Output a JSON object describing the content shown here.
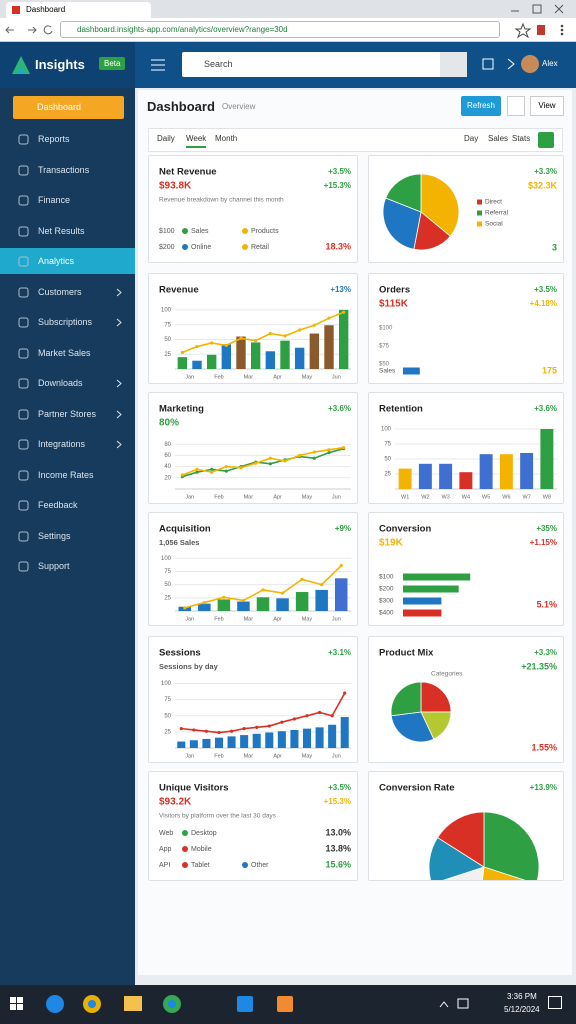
{
  "browser": {
    "tab": "Dashboard",
    "url": "dashboard.insights-app.com/analytics/overview?range=30d"
  },
  "header": {
    "logo": "Insights",
    "badge": "Beta",
    "search": "Search",
    "user": "Alex"
  },
  "sidebar": {
    "primary": "Dashboard",
    "items": [
      {
        "label": "Reports"
      },
      {
        "label": "Transactions"
      },
      {
        "label": "Finance"
      },
      {
        "label": "Net Results"
      },
      {
        "label": "Analytics",
        "active": true
      },
      {
        "label": "Customers",
        "submenu": true
      },
      {
        "label": "Subscriptions",
        "submenu": true
      },
      {
        "label": "Market Sales"
      },
      {
        "label": "Downloads",
        "submenu": true
      },
      {
        "label": "Partner Stores",
        "submenu": true
      },
      {
        "label": "Integrations",
        "submenu": true
      },
      {
        "label": "Income Rates"
      },
      {
        "label": "Feedback"
      },
      {
        "label": "Settings"
      },
      {
        "label": "Support"
      }
    ]
  },
  "page": {
    "title": "Dashboard",
    "subtitle": "Overview",
    "buttons": [
      "Refresh",
      "View"
    ],
    "tabs": [
      "Daily",
      "Week",
      "Month"
    ],
    "active_tab": 1,
    "filters": [
      "Day",
      "Sales",
      "Stats"
    ]
  },
  "cards": [
    {
      "type": "summary",
      "title": "Net Revenue",
      "change": "+3.5%",
      "value": "$93.8K",
      "value_color": "#d93025",
      "change2": "+15.3%",
      "note": "Revenue breakdown by channel this month",
      "rows": [
        {
          "lead": "$100",
          "items": [
            {
              "label": "Sales",
              "color": "#2ea043"
            },
            {
              "label": "Products",
              "color": "#f5b301"
            }
          ]
        },
        {
          "lead": "$200",
          "items": [
            {
              "label": "Online",
              "color": "#1f77c4"
            },
            {
              "label": "Retail",
              "color": "#f5b301"
            }
          ],
          "value": "18.3%",
          "value_color": "#d93025"
        }
      ]
    },
    {
      "type": "pie",
      "change": "+3.3%",
      "value": "$32.3K",
      "value_color": "#f5b301",
      "values": [
        36,
        17,
        28,
        19
      ],
      "colors": [
        "#f5b301",
        "#d93025",
        "#1f77c4",
        "#2ea043"
      ],
      "legend": [
        {
          "label": "Direct",
          "color": "#d93025"
        },
        {
          "label": "Referral",
          "color": "#2ea043"
        },
        {
          "label": "Social",
          "color": "#f5b301"
        }
      ],
      "footer": "3",
      "footer_color": "#2ea043"
    },
    {
      "type": "chart",
      "title": "Revenue",
      "change": "+13%",
      "change_color": "#1f77c4",
      "ylim": [
        0,
        110
      ],
      "yticks": [
        25,
        50,
        75,
        100
      ],
      "xlabels": [
        "Jan",
        "Feb",
        "Mar",
        "Apr",
        "May",
        "Jun"
      ],
      "series": [
        {
          "kind": "bar",
          "colors": [
            "#2ea043",
            "#1f77c4",
            "#2ea043",
            "#1f77c4",
            "#8b5a2b",
            "#2ea043",
            "#1f77c4",
            "#2ea043",
            "#1f77c4",
            "#8b5a2b",
            "#8b5a2b",
            "#2ea043"
          ],
          "values": [
            20,
            14,
            24,
            42,
            55,
            45,
            30,
            48,
            36,
            60,
            74,
            100
          ]
        },
        {
          "kind": "line",
          "color": "#f5b301",
          "values": [
            28,
            38,
            44,
            40,
            52,
            48,
            60,
            56,
            66,
            74,
            86,
            96
          ]
        }
      ]
    },
    {
      "type": "hbar",
      "title": "Orders",
      "change": "+3.5%",
      "value": "$115K",
      "value_color": "#d93025",
      "change2": "+4.18%",
      "change2_color": "#f5b301",
      "scale": [
        "$100",
        "$75",
        "$50"
      ],
      "xlim": [
        0,
        1000
      ],
      "print_values": true,
      "values_color": "#f5b301",
      "bars": [
        {
          "label": "Sales",
          "value": 175,
          "color": "#1f77c4"
        }
      ]
    },
    {
      "type": "chart",
      "title": "Marketing",
      "change": "+3.6%",
      "value": "80%",
      "value_color": "#2ea043",
      "ylim": [
        0,
        100
      ],
      "yticks": [
        20,
        40,
        60,
        80
      ],
      "xlabels": [
        "Jan",
        "Feb",
        "Mar",
        "Apr",
        "May",
        "Jun"
      ],
      "series": [
        {
          "kind": "line",
          "color": "#2ea043",
          "values": [
            22,
            30,
            35,
            32,
            40,
            48,
            45,
            52,
            58,
            55,
            65,
            72
          ]
        },
        {
          "kind": "line",
          "color": "#f5b301",
          "values": [
            25,
            35,
            30,
            40,
            38,
            46,
            55,
            50,
            60,
            66,
            70,
            74
          ]
        }
      ]
    },
    {
      "type": "chart",
      "title": "Retention",
      "change": "+3.6%",
      "ylim": [
        0,
        110
      ],
      "yticks": [
        25,
        50,
        75,
        100
      ],
      "xlabels": [
        "W1",
        "W2",
        "W3",
        "W4",
        "W5",
        "W6",
        "W7",
        "W8"
      ],
      "series": [
        {
          "kind": "bar",
          "colors": [
            "#f5b301",
            "#3f6fd1",
            "#3f6fd1",
            "#d93025",
            "#3f6fd1",
            "#f5b301",
            "#3f6fd1",
            "#2ea043"
          ],
          "values": [
            34,
            42,
            42,
            28,
            58,
            58,
            60,
            100
          ]
        }
      ]
    },
    {
      "type": "chart",
      "title": "Acquisition",
      "change": "+9%",
      "value": "1,056 Sales",
      "value_color": "#555555",
      "ylim": [
        0,
        110
      ],
      "yticks": [
        25,
        50,
        75,
        100
      ],
      "xlabels": [
        "Jan",
        "Feb",
        "Mar",
        "Apr",
        "May",
        "Jun"
      ],
      "series": [
        {
          "kind": "bar",
          "colors": [
            "#1f77c4",
            "#1f77c4",
            "#2ea043",
            "#1f77c4",
            "#2ea043",
            "#1f77c4",
            "#2ea043",
            "#1f77c4",
            "#3f6fd1"
          ],
          "values": [
            8,
            14,
            22,
            18,
            26,
            24,
            36,
            40,
            62
          ]
        },
        {
          "kind": "line",
          "color": "#f5b301",
          "values": [
            6,
            16,
            26,
            20,
            40,
            34,
            60,
            50,
            86
          ]
        }
      ]
    },
    {
      "type": "hbar",
      "title": "Conversion",
      "change": "+35%",
      "value": "$19K",
      "value_color": "#f5b301",
      "change2": "+1.15%",
      "change2_color": "#d93025",
      "xlim": [
        0,
        100
      ],
      "bars": [
        {
          "label": "$100",
          "value": 70,
          "color": "#2ea043"
        },
        {
          "label": "$200",
          "value": 58,
          "color": "#2ea043"
        },
        {
          "label": "$300",
          "value": 40,
          "color": "#1f77c4"
        },
        {
          "label": "$400",
          "value": 40,
          "color": "#d93025"
        }
      ],
      "footer": "5.1%",
      "footer_color": "#d93025"
    },
    {
      "type": "chart",
      "title": "Sessions",
      "change": "+3.1%",
      "value": "Sessions by day",
      "value_color": "#555555",
      "ylim": [
        0,
        110
      ],
      "yticks": [
        25,
        50,
        75,
        100
      ],
      "xlabels": [
        "Jan",
        "Feb",
        "Mar",
        "Apr",
        "May",
        "Jun"
      ],
      "series": [
        {
          "kind": "bar",
          "color": "#1f77c4",
          "values": [
            10,
            12,
            14,
            16,
            18,
            20,
            22,
            24,
            26,
            28,
            30,
            32,
            36,
            48
          ]
        },
        {
          "kind": "line",
          "color": "#d93025",
          "values": [
            30,
            28,
            26,
            24,
            26,
            30,
            32,
            34,
            40,
            45,
            50,
            55,
            50,
            85
          ]
        }
      ]
    },
    {
      "type": "pie",
      "title": "Product Mix",
      "change": "+3.3%",
      "value": "+21.35%",
      "value_color": "#2ea043",
      "caption": "Categories",
      "values": [
        25,
        18,
        30,
        27
      ],
      "colors": [
        "#d93025",
        "#b5c832",
        "#1f77c4",
        "#2ea043"
      ],
      "footer": "1.55%",
      "footer_color": "#d93025"
    },
    {
      "type": "summary",
      "title": "Unique Visitors",
      "change": "+3.5%",
      "value": "$93.2K",
      "value_color": "#d93025",
      "change2": "+15.3%",
      "change2_color": "#f5b301",
      "note": "Visitors by platform over the last 30 days",
      "rows": [
        {
          "lead": "Web",
          "items": [
            {
              "label": "Desktop",
              "color": "#2ea043"
            }
          ],
          "value": "13.0%"
        },
        {
          "lead": "App",
          "items": [
            {
              "label": "Mobile",
              "color": "#d93025"
            }
          ],
          "value": "13.8%"
        },
        {
          "lead": "API",
          "items": [
            {
              "label": "Tablet",
              "color": "#d93025"
            },
            {
              "label": "Other",
              "color": "#1f77c4"
            }
          ],
          "value": "15.6%",
          "value_color": "#2ea043"
        }
      ]
    },
    {
      "type": "pie",
      "title": "Conversion Rate",
      "change": "+13.9%",
      "values": [
        30,
        22,
        18,
        14,
        16
      ],
      "colors": [
        "#2ea043",
        "#f5b301",
        "#f1f1f1",
        "#1f8fb8",
        "#d93025"
      ]
    }
  ],
  "taskbar": {
    "time": "3:36 PM",
    "date": "5/12/2024"
  }
}
